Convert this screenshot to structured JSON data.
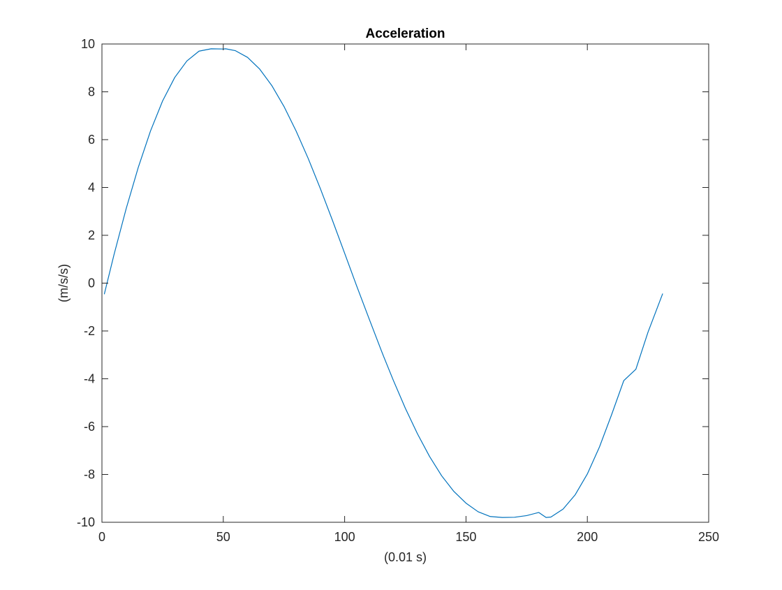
{
  "chart_data": {
    "type": "line",
    "title": "Acceleration",
    "xlabel": "(0.01 s)",
    "ylabel": "(m/s/s)",
    "xlim": [
      0,
      250
    ],
    "ylim": [
      -10,
      10
    ],
    "xticks": [
      "0",
      "50",
      "100",
      "150",
      "200",
      "250"
    ],
    "yticks": [
      "-10",
      "-8",
      "-6",
      "-4",
      "-2",
      "0",
      "2",
      "4",
      "6",
      "8",
      "10"
    ],
    "grid": false,
    "legend": "none",
    "series": [
      {
        "color": "#0072BD",
        "x": [
          1,
          5,
          10,
          15,
          20,
          25,
          30,
          35,
          40,
          45,
          50,
          51,
          55,
          60,
          65,
          70,
          75,
          80,
          85,
          90,
          95,
          100,
          105,
          110,
          115,
          116,
          120,
          125,
          130,
          135,
          140,
          145,
          150,
          155,
          160,
          165,
          170,
          175,
          180,
          183,
          185,
          190,
          195,
          200,
          205,
          210,
          215,
          220,
          225,
          231
        ],
        "y": [
          -0.45,
          1.2,
          3.12,
          4.85,
          6.36,
          7.62,
          8.6,
          9.29,
          9.7,
          9.8,
          9.79,
          9.8,
          9.72,
          9.44,
          8.95,
          8.26,
          7.39,
          6.36,
          5.21,
          3.95,
          2.62,
          1.25,
          -0.13,
          -1.47,
          -2.79,
          -3.05,
          -4.05,
          -5.23,
          -6.3,
          -7.25,
          -8.06,
          -8.71,
          -9.2,
          -9.56,
          -9.76,
          -9.8,
          -9.79,
          -9.72,
          -9.59,
          -9.8,
          -9.78,
          -9.45,
          -8.85,
          -7.98,
          -6.85,
          -5.5,
          -4.08,
          -3.6,
          -2.05,
          -0.45
        ]
      }
    ]
  }
}
